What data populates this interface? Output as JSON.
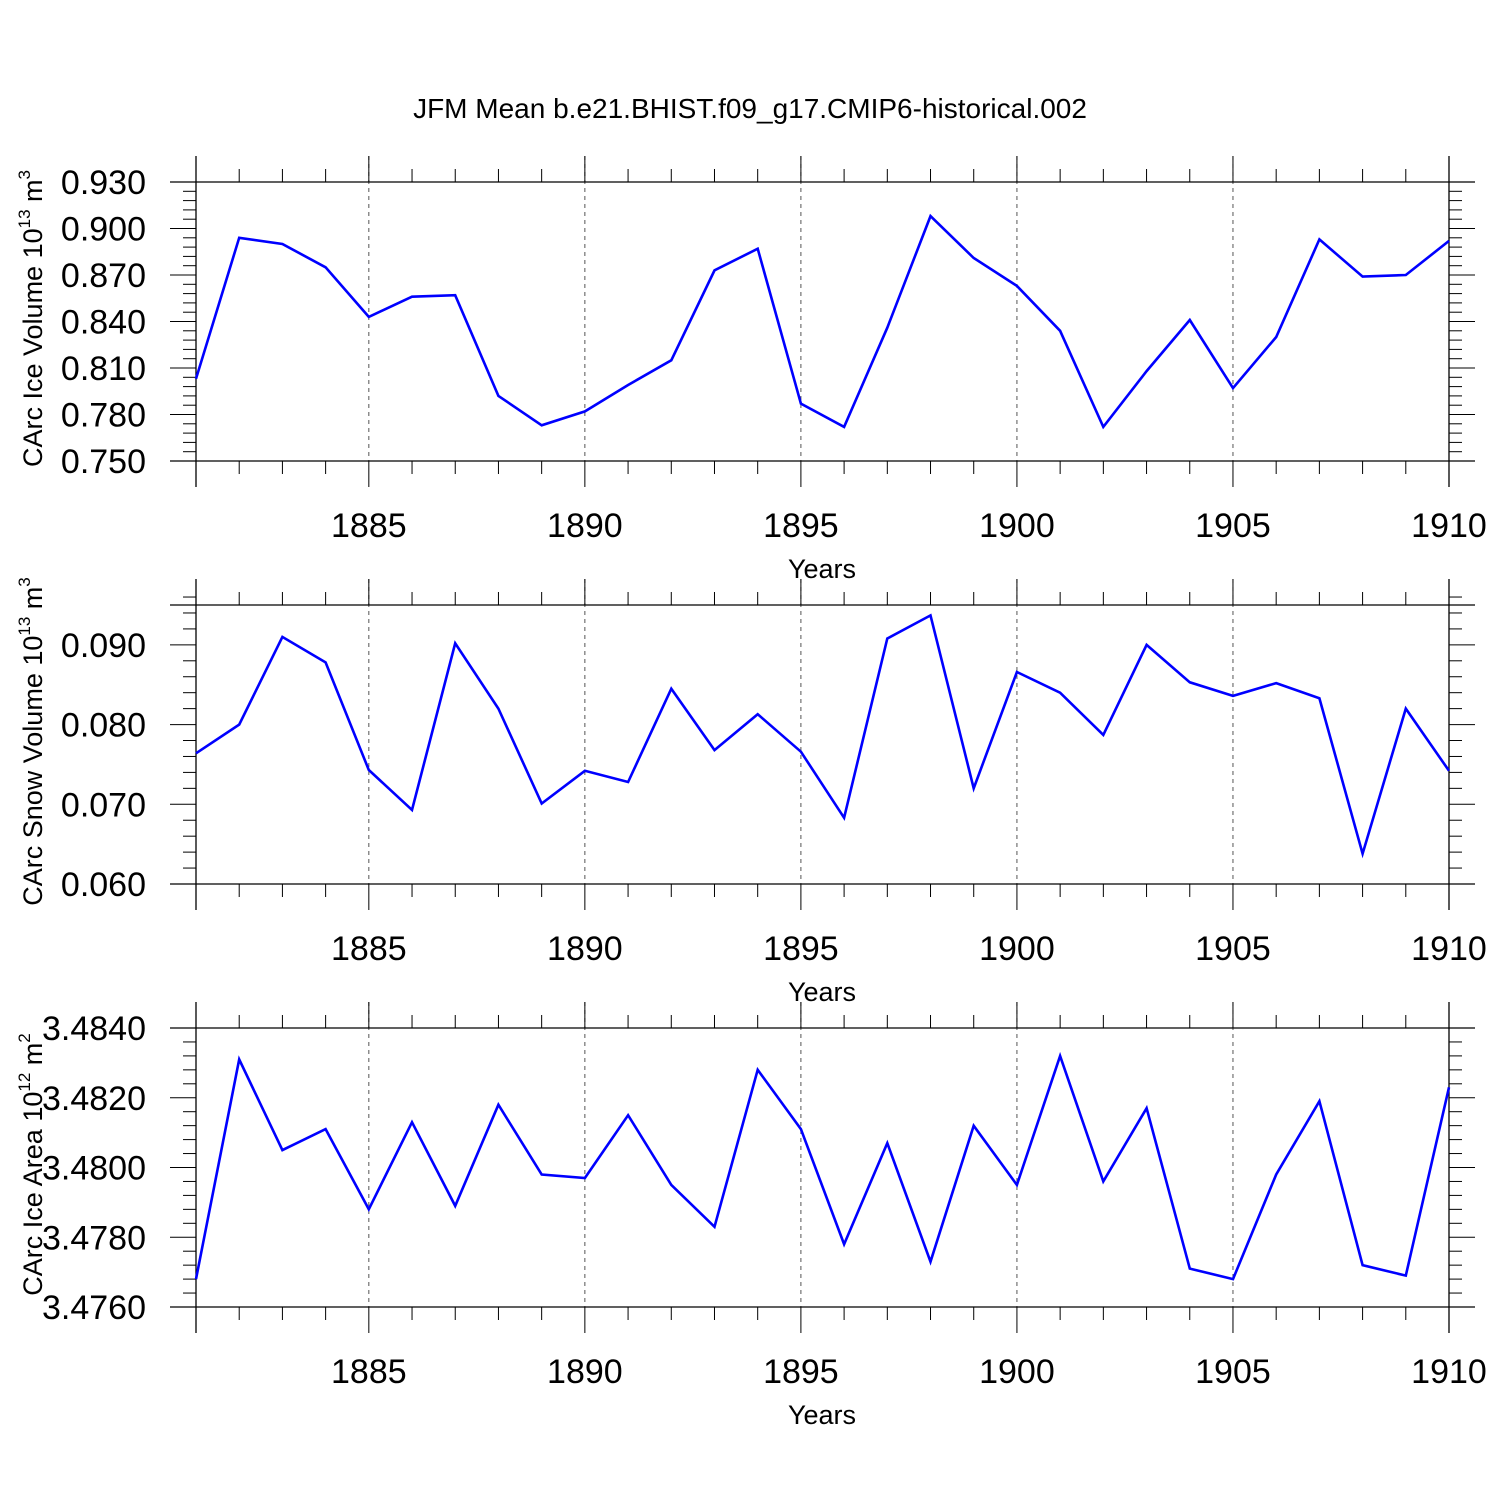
{
  "title": "JFM Mean b.e21.BHIST.f09_g17.CMIP6-historical.002",
  "line_color": "#0000ff",
  "chart_data": [
    {
      "type": "line",
      "x_label": "Years",
      "y_label_main": "CArc Ice Volume 10",
      "y_label_exp": "13",
      "y_label_unit": "m",
      "y_label_unit_exp": "3",
      "xlim": [
        1881,
        1910
      ],
      "ylim": [
        0.75,
        0.93
      ],
      "x_ticks": [
        "1885",
        "1890",
        "1895",
        "1900",
        "1905",
        "1910"
      ],
      "y_ticks": [
        "0.750",
        "0.780",
        "0.810",
        "0.840",
        "0.870",
        "0.900",
        "0.930"
      ],
      "grid": "vertical dashed at major x ticks",
      "x": [
        1881,
        1882,
        1883,
        1884,
        1885,
        1886,
        1887,
        1888,
        1889,
        1890,
        1891,
        1892,
        1893,
        1894,
        1895,
        1896,
        1897,
        1898,
        1899,
        1900,
        1901,
        1902,
        1903,
        1904,
        1905,
        1906,
        1907,
        1908,
        1909,
        1910
      ],
      "values": [
        0.803,
        0.894,
        0.89,
        0.875,
        0.843,
        0.856,
        0.857,
        0.792,
        0.773,
        0.782,
        0.799,
        0.815,
        0.873,
        0.887,
        0.787,
        0.772,
        0.836,
        0.908,
        0.881,
        0.863,
        0.834,
        0.772,
        0.808,
        0.841,
        0.797,
        0.83,
        0.893,
        0.869,
        0.87,
        0.892
      ]
    },
    {
      "type": "line",
      "x_label": "Years",
      "y_label_main": "CArc Snow Volume 10",
      "y_label_exp": "13",
      "y_label_unit": "m",
      "y_label_unit_exp": "3",
      "xlim": [
        1881,
        1910
      ],
      "ylim": [
        0.06,
        0.095
      ],
      "x_ticks": [
        "1885",
        "1890",
        "1895",
        "1900",
        "1905",
        "1910"
      ],
      "y_ticks": [
        "0.060",
        "0.070",
        "0.080",
        "0.090"
      ],
      "grid": "vertical dashed at major x ticks",
      "x": [
        1881,
        1882,
        1883,
        1884,
        1885,
        1886,
        1887,
        1888,
        1889,
        1890,
        1891,
        1892,
        1893,
        1894,
        1895,
        1896,
        1897,
        1898,
        1899,
        1900,
        1901,
        1902,
        1903,
        1904,
        1905,
        1906,
        1907,
        1908,
        1909,
        1910
      ],
      "values": [
        0.0764,
        0.08,
        0.091,
        0.0878,
        0.0743,
        0.0693,
        0.0902,
        0.082,
        0.0701,
        0.0742,
        0.0728,
        0.0845,
        0.0768,
        0.0813,
        0.0766,
        0.0683,
        0.0908,
        0.0937,
        0.072,
        0.0866,
        0.084,
        0.0787,
        0.09,
        0.0853,
        0.0836,
        0.0852,
        0.0833,
        0.0638,
        0.082,
        0.0742
      ]
    },
    {
      "type": "line",
      "x_label": "Years",
      "y_label_main": "CArc Ice Area 10",
      "y_label_exp": "12",
      "y_label_unit": "m",
      "y_label_unit_exp": "2",
      "xlim": [
        1881,
        1910
      ],
      "ylim": [
        3.476,
        3.484
      ],
      "x_ticks": [
        "1885",
        "1890",
        "1895",
        "1900",
        "1905",
        "1910"
      ],
      "y_ticks": [
        "3.4760",
        "3.4780",
        "3.4800",
        "3.4820",
        "3.4840"
      ],
      "grid": "vertical dashed at major x ticks",
      "x": [
        1881,
        1882,
        1883,
        1884,
        1885,
        1886,
        1887,
        1888,
        1889,
        1890,
        1891,
        1892,
        1893,
        1894,
        1895,
        1896,
        1897,
        1898,
        1899,
        1900,
        1901,
        1902,
        1903,
        1904,
        1905,
        1906,
        1907,
        1908,
        1909,
        1910
      ],
      "values": [
        3.4768,
        3.4831,
        3.4805,
        3.4811,
        3.4788,
        3.4813,
        3.4789,
        3.4818,
        3.4798,
        3.4797,
        3.4815,
        3.4795,
        3.4783,
        3.4828,
        3.4811,
        3.4778,
        3.4807,
        3.4773,
        3.4812,
        3.4795,
        3.4832,
        3.4796,
        3.4817,
        3.4771,
        3.4768,
        3.4798,
        3.4819,
        3.4772,
        3.4769,
        3.4823
      ]
    }
  ]
}
